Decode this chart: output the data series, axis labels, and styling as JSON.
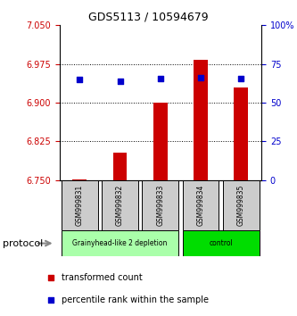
{
  "title": "GDS5113 / 10594679",
  "samples": [
    "GSM999831",
    "GSM999832",
    "GSM999833",
    "GSM999834",
    "GSM999835"
  ],
  "bar_values": [
    6.752,
    6.803,
    6.9,
    6.983,
    6.93
  ],
  "bar_base": 6.75,
  "percentile_values": [
    65,
    64,
    65.5,
    66,
    65.5
  ],
  "ylim_left": [
    6.75,
    7.05
  ],
  "ylim_right": [
    0,
    100
  ],
  "yticks_left": [
    6.75,
    6.825,
    6.9,
    6.975,
    7.05
  ],
  "yticks_right": [
    0,
    25,
    50,
    75,
    100
  ],
  "ytick_labels_right": [
    "0",
    "25",
    "50",
    "75",
    "100%"
  ],
  "bar_color": "#cc0000",
  "point_color": "#0000cc",
  "groups": [
    {
      "label": "Grainyhead-like 2 depletion",
      "indices": [
        0,
        1,
        2
      ],
      "color": "#aaffaa"
    },
    {
      "label": "control",
      "indices": [
        3,
        4
      ],
      "color": "#00dd00"
    }
  ],
  "sample_box_color": "#cccccc",
  "bg_color": "#ffffff",
  "ylabel_left_color": "#cc0000",
  "ylabel_right_color": "#0000cc",
  "legend_red_label": "transformed count",
  "legend_blue_label": "percentile rank within the sample",
  "protocol_label": "protocol",
  "grid_dotted_color": "#000000"
}
